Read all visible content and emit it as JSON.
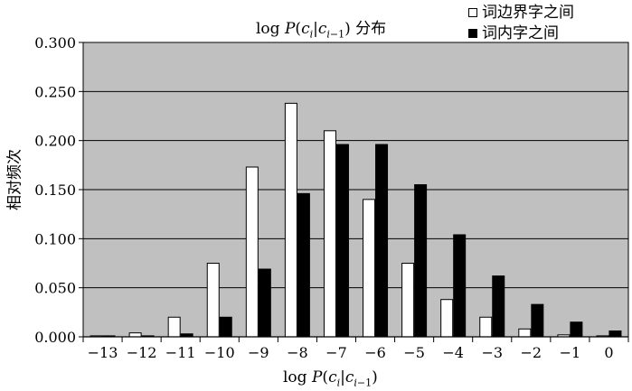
{
  "chart_data": {
    "type": "bar",
    "title": "log P(c_i|c_{i-1}) 分布",
    "xlabel": "log P(c_i|c_{i-1})",
    "ylabel": "相对频次",
    "categories": [
      "-13",
      "-12",
      "-11",
      "-10",
      "-9",
      "-8",
      "-7",
      "-6",
      "-5",
      "-4",
      "-3",
      "-2",
      "-1",
      "0"
    ],
    "ylim": [
      0,
      0.3
    ],
    "yticks": [
      "0.000",
      "0.050",
      "0.100",
      "0.150",
      "0.200",
      "0.250",
      "0.300"
    ],
    "series": [
      {
        "name": "词边界字之间",
        "color": "#ffffff",
        "values": [
          0.001,
          0.004,
          0.02,
          0.075,
          0.173,
          0.238,
          0.21,
          0.14,
          0.075,
          0.038,
          0.02,
          0.008,
          0.002,
          0.001
        ]
      },
      {
        "name": "词内字之间",
        "color": "#000000",
        "values": [
          0.001,
          0.001,
          0.003,
          0.02,
          0.069,
          0.146,
          0.196,
          0.196,
          0.155,
          0.104,
          0.062,
          0.033,
          0.015,
          0.006
        ]
      }
    ],
    "plot_background": "#c0c0c0",
    "grid": true,
    "legend_position": "top-right"
  }
}
